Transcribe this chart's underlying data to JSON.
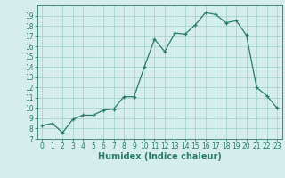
{
  "xlabel": "Humidex (Indice chaleur)",
  "x_values": [
    0,
    1,
    2,
    3,
    4,
    5,
    6,
    7,
    8,
    9,
    10,
    11,
    12,
    13,
    14,
    15,
    16,
    17,
    18,
    19,
    20,
    21,
    22,
    23
  ],
  "y_values": [
    8.3,
    8.5,
    7.6,
    8.9,
    9.3,
    9.3,
    9.8,
    9.9,
    11.1,
    11.1,
    14.0,
    16.7,
    15.5,
    17.3,
    17.2,
    18.1,
    19.3,
    19.1,
    18.3,
    18.5,
    17.1,
    12.0,
    11.2,
    10.0
  ],
  "ylim": [
    7,
    20
  ],
  "xlim": [
    -0.5,
    23.5
  ],
  "line_color": "#2a7a6a",
  "bg_color": "#d5eeeb",
  "grid_color": "#9ecfc8",
  "yticks": [
    7,
    8,
    9,
    10,
    11,
    12,
    13,
    14,
    15,
    16,
    17,
    18,
    19
  ],
  "xticks": [
    0,
    1,
    2,
    3,
    4,
    5,
    6,
    7,
    8,
    9,
    10,
    11,
    12,
    13,
    14,
    15,
    16,
    17,
    18,
    19,
    20,
    21,
    22,
    23
  ],
  "tick_fontsize": 5.5,
  "xlabel_fontsize": 7
}
